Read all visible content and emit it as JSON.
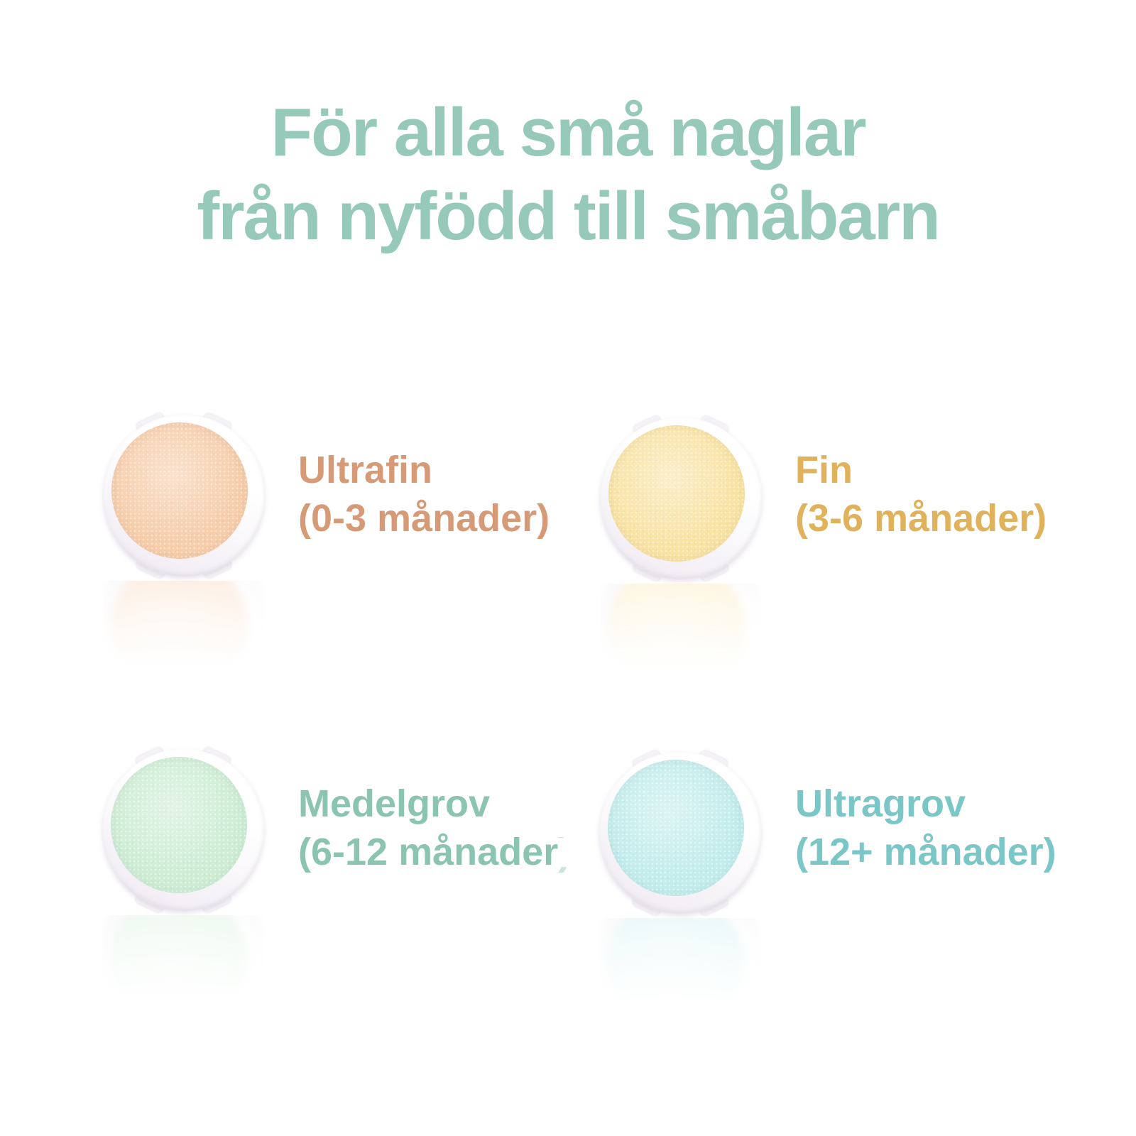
{
  "title": {
    "line1": "För alla små naglar",
    "line2": "från nyfödd till småbarn",
    "color": "#97C9BB"
  },
  "items": [
    {
      "name": "Ultrafin",
      "range": "(0-3 månader)",
      "label_color": "#D79A77",
      "pad_color": "#F7CDAA"
    },
    {
      "name": "Fin",
      "range": "(3-6 månader)",
      "label_color": "#E1B25C",
      "pad_color": "#F9E3A3"
    },
    {
      "name": "Medelgrov",
      "range": "(6-12 månader",
      "range_faint": ")",
      "label_color": "#8BC5B1",
      "pad_color": "#CDEDD5"
    },
    {
      "name": "Ultragrov",
      "range": "(12+ månader)",
      "label_color": "#7BC6C6",
      "pad_color": "#C2EDEC"
    }
  ]
}
